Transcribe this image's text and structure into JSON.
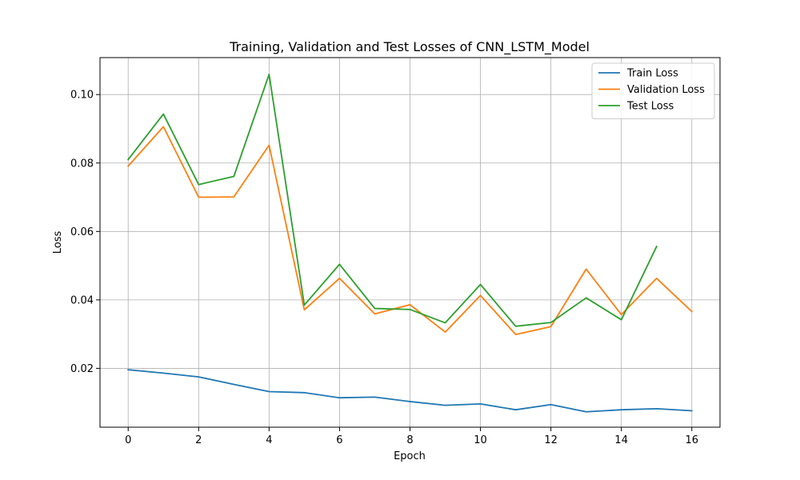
{
  "chart_data": {
    "type": "line",
    "title": "Training, Validation and Test Losses of CNN_LSTM_Model",
    "xlabel": "Epoch",
    "ylabel": "Loss",
    "xlim": [
      -0.8,
      16.8
    ],
    "ylim": [
      0.0028,
      0.1108
    ],
    "xticks": [
      0,
      2,
      4,
      6,
      8,
      10,
      12,
      14,
      16
    ],
    "xtick_labels": [
      "0",
      "2",
      "4",
      "6",
      "8",
      "10",
      "12",
      "14",
      "16"
    ],
    "yticks": [
      0.02,
      0.04,
      0.06,
      0.08,
      0.1
    ],
    "ytick_labels": [
      "0.02",
      "0.04",
      "0.06",
      "0.08",
      "0.10"
    ],
    "grid": true,
    "legend_position": "top-right",
    "series": [
      {
        "name": "Train Loss",
        "color": "#1f77b4",
        "x": [
          0,
          1,
          2,
          3,
          4,
          5,
          6,
          7,
          8,
          9,
          10,
          11,
          12,
          13,
          14,
          15,
          16
        ],
        "y": [
          0.0196,
          0.0186,
          0.0175,
          0.0153,
          0.0132,
          0.0129,
          0.0114,
          0.0116,
          0.0103,
          0.0092,
          0.0096,
          0.0079,
          0.0094,
          0.0073,
          0.0079,
          0.0082,
          0.0076
        ]
      },
      {
        "name": "Validation Loss",
        "color": "#ff7f0e",
        "x": [
          0,
          1,
          2,
          3,
          4,
          5,
          6,
          7,
          8,
          9,
          10,
          11,
          12,
          13,
          14,
          15,
          16
        ],
        "y": [
          0.0791,
          0.0906,
          0.07,
          0.0701,
          0.0852,
          0.0371,
          0.0463,
          0.0359,
          0.0386,
          0.0306,
          0.0413,
          0.0299,
          0.0322,
          0.049,
          0.0357,
          0.0463,
          0.0366
        ]
      },
      {
        "name": "Test Loss",
        "color": "#2ca02c",
        "x": [
          0,
          1,
          2,
          3,
          4,
          5,
          6,
          7,
          8,
          9,
          10,
          11,
          12,
          13,
          14,
          15
        ],
        "y": [
          0.081,
          0.0943,
          0.0737,
          0.0761,
          0.1059,
          0.0385,
          0.0504,
          0.0375,
          0.0372,
          0.0333,
          0.0445,
          0.0323,
          0.0334,
          0.0406,
          0.0342,
          0.0556
        ]
      }
    ]
  },
  "colors": {
    "grid": "#b0b0b0",
    "axis": "#000000",
    "legend_border": "#cccccc"
  }
}
